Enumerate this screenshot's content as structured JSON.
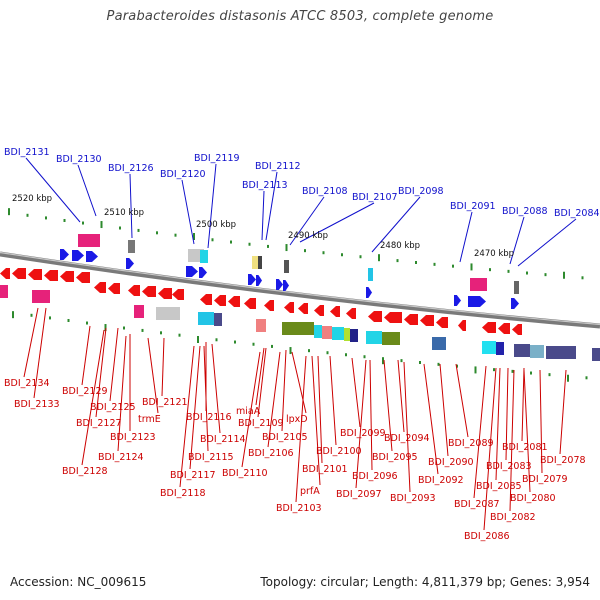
{
  "title": "Parabacteroides distasonis ATCC 8503, complete genome",
  "footer": {
    "accession": "Accession: NC_009615",
    "summary": "Topology: circular; Length: 4,811,379 bp; Genes: 3,954"
  },
  "colors": {
    "forward_label": "#1010cc",
    "reverse_label": "#cc0000",
    "backbone": "#7a7a7a",
    "tick": "#2d8a2d"
  },
  "kbp_labels": [
    "2520 kbp",
    "2510 kbp",
    "2500 kbp",
    "2490 kbp",
    "2480 kbp",
    "2470 kbp"
  ],
  "forward_genes": [
    "BDI_2131",
    "BDI_2130",
    "BDI_2126",
    "BDI_2120",
    "BDI_2119",
    "BDI_2113",
    "BDI_2112",
    "BDI_2108",
    "BDI_2107",
    "BDI_2098",
    "BDI_2091",
    "BDI_2088",
    "BDI_2084"
  ],
  "reverse_genes": [
    "BDI_2134",
    "BDI_2133",
    "BDI_2129",
    "BDI_2127",
    "BDI_2125",
    "trmE",
    "BDI_2123",
    "BDI_2121",
    "BDI_2124",
    "BDI_2128",
    "BDI_2116",
    "BDI_2114",
    "BDI_2115",
    "BDI_2117",
    "BDI_2118",
    "miaA",
    "BDI_2109",
    "BDI_2105",
    "lpxD",
    "BDI_2106",
    "BDI_2110",
    "BDI_2100",
    "BDI_2099",
    "BDI_2101",
    "prfA",
    "BDI_2103",
    "BDI_2094",
    "BDI_2095",
    "BDI_2096",
    "BDI_2097",
    "BDI_2092",
    "BDI_2093",
    "BDI_2089",
    "BDI_2090",
    "BDI_2081",
    "BDI_2083",
    "BDI_2078",
    "BDI_2079",
    "BDI_2085",
    "BDI_2080",
    "BDI_2087",
    "BDI_2082",
    "BDI_2086"
  ]
}
